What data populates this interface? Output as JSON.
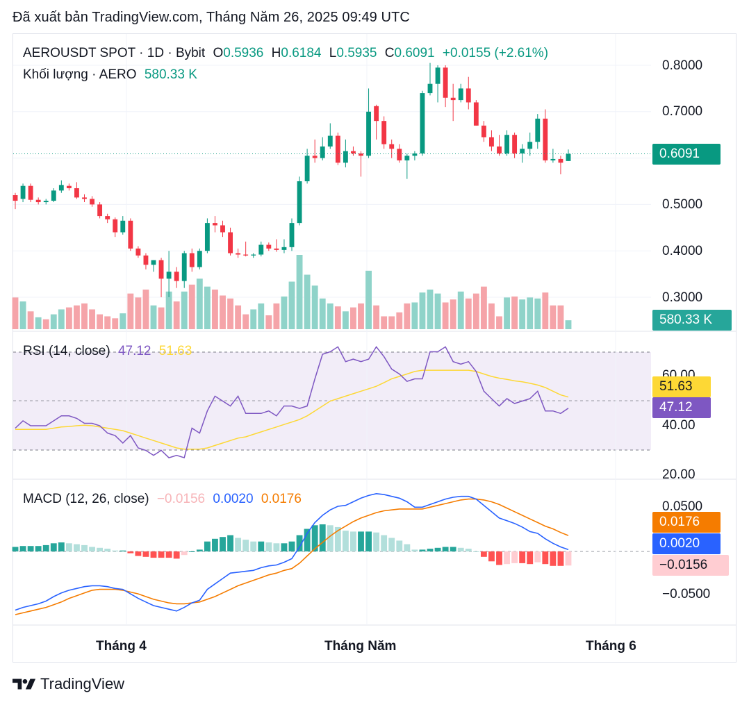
{
  "header": {
    "published": "Đã xuất bản TradingView.com, Tháng Năm 26, 2025 09:49 UTC"
  },
  "legend": {
    "symbol": "AEROUSDT SPOT · 1D · Bybit",
    "o_label": "O",
    "o": "0.5936",
    "h_label": "H",
    "h": "0.6184",
    "l_label": "L",
    "l": "0.5935",
    "c_label": "C",
    "c": "0.6091",
    "change": "+0.0155 (+2.61%)",
    "volume_label": "Khối lượng · AERO",
    "volume_value": "580.33 K"
  },
  "rsi_legend": {
    "label": "RSI (14, close)",
    "rsi": "47.12",
    "ma": "51.63"
  },
  "macd_legend": {
    "label": "MACD (12, 26, close)",
    "hist": "−0.0156",
    "macd": "0.0020",
    "signal": "0.0176"
  },
  "price_axis": [
    "0.8000",
    "0.7000",
    "0.5000",
    "0.4000",
    "0.3000"
  ],
  "rsi_axis": [
    "60.00",
    "40.00",
    "20.00"
  ],
  "macd_axis": [
    "0.0500",
    "−0.0500"
  ],
  "tags": {
    "price": "0.6091",
    "volume": "580.33 K",
    "rsi_ma": "51.63",
    "rsi": "47.12",
    "signal": "0.0176",
    "macd": "0.0020",
    "hist": "−0.0156"
  },
  "x_labels": [
    "Tháng 4",
    "Tháng Năm",
    "Tháng 6"
  ],
  "footer": {
    "brand": "TradingView"
  },
  "colors": {
    "up": "#089981",
    "down": "#f23645",
    "vol_up": "#8fd3c9",
    "vol_down": "#f5a4a9",
    "rsi": "#7e57c2",
    "rsi_ma": "#fdd835",
    "macd": "#2962ff",
    "signal": "#f57c00"
  },
  "chart_data": [
    {
      "type": "candlestick",
      "title": "AEROUSDT SPOT · 1D · Bybit",
      "ylim": [
        0.23,
        0.86
      ],
      "yticks": [
        0.3,
        0.4,
        0.5,
        0.7,
        0.8
      ],
      "last_close": 0.6091,
      "candles": [
        {
          "o": 0.52,
          "h": 0.525,
          "l": 0.49,
          "c": 0.508
        },
        {
          "o": 0.512,
          "h": 0.545,
          "l": 0.505,
          "c": 0.54
        },
        {
          "o": 0.54,
          "h": 0.545,
          "l": 0.505,
          "c": 0.51
        },
        {
          "o": 0.51,
          "h": 0.515,
          "l": 0.5,
          "c": 0.505
        },
        {
          "o": 0.505,
          "h": 0.512,
          "l": 0.5,
          "c": 0.508
        },
        {
          "o": 0.508,
          "h": 0.535,
          "l": 0.505,
          "c": 0.53
        },
        {
          "o": 0.53,
          "h": 0.552,
          "l": 0.525,
          "c": 0.542
        },
        {
          "o": 0.54,
          "h": 0.545,
          "l": 0.53,
          "c": 0.535
        },
        {
          "o": 0.535,
          "h": 0.548,
          "l": 0.512,
          "c": 0.515
        },
        {
          "o": 0.515,
          "h": 0.522,
          "l": 0.505,
          "c": 0.512
        },
        {
          "o": 0.512,
          "h": 0.518,
          "l": 0.495,
          "c": 0.5
        },
        {
          "o": 0.5,
          "h": 0.505,
          "l": 0.47,
          "c": 0.475
        },
        {
          "o": 0.475,
          "h": 0.48,
          "l": 0.46,
          "c": 0.468
        },
        {
          "o": 0.468,
          "h": 0.472,
          "l": 0.43,
          "c": 0.44
        },
        {
          "o": 0.44,
          "h": 0.475,
          "l": 0.435,
          "c": 0.465
        },
        {
          "o": 0.465,
          "h": 0.47,
          "l": 0.4,
          "c": 0.405
        },
        {
          "o": 0.405,
          "h": 0.41,
          "l": 0.385,
          "c": 0.39
        },
        {
          "o": 0.39,
          "h": 0.395,
          "l": 0.36,
          "c": 0.37
        },
        {
          "o": 0.37,
          "h": 0.38,
          "l": 0.355,
          "c": 0.38
        },
        {
          "o": 0.38,
          "h": 0.385,
          "l": 0.3,
          "c": 0.34
        },
        {
          "o": 0.34,
          "h": 0.4,
          "l": 0.3,
          "c": 0.355
        },
        {
          "o": 0.355,
          "h": 0.365,
          "l": 0.32,
          "c": 0.335
        },
        {
          "o": 0.335,
          "h": 0.4,
          "l": 0.32,
          "c": 0.395
        },
        {
          "o": 0.395,
          "h": 0.405,
          "l": 0.355,
          "c": 0.365
        },
        {
          "o": 0.365,
          "h": 0.405,
          "l": 0.36,
          "c": 0.4
        },
        {
          "o": 0.4,
          "h": 0.47,
          "l": 0.395,
          "c": 0.46
        },
        {
          "o": 0.46,
          "h": 0.475,
          "l": 0.44,
          "c": 0.455
        },
        {
          "o": 0.455,
          "h": 0.465,
          "l": 0.43,
          "c": 0.44
        },
        {
          "o": 0.44,
          "h": 0.45,
          "l": 0.39,
          "c": 0.395
        },
        {
          "o": 0.395,
          "h": 0.405,
          "l": 0.385,
          "c": 0.392
        },
        {
          "o": 0.392,
          "h": 0.42,
          "l": 0.388,
          "c": 0.39
        },
        {
          "o": 0.39,
          "h": 0.395,
          "l": 0.385,
          "c": 0.392
        },
        {
          "o": 0.392,
          "h": 0.42,
          "l": 0.388,
          "c": 0.413
        },
        {
          "o": 0.413,
          "h": 0.418,
          "l": 0.4,
          "c": 0.405
        },
        {
          "o": 0.405,
          "h": 0.425,
          "l": 0.398,
          "c": 0.402
        },
        {
          "o": 0.402,
          "h": 0.425,
          "l": 0.395,
          "c": 0.408
        },
        {
          "o": 0.408,
          "h": 0.47,
          "l": 0.4,
          "c": 0.46
        },
        {
          "o": 0.46,
          "h": 0.56,
          "l": 0.455,
          "c": 0.55
        },
        {
          "o": 0.55,
          "h": 0.62,
          "l": 0.545,
          "c": 0.605
        },
        {
          "o": 0.605,
          "h": 0.64,
          "l": 0.59,
          "c": 0.6
        },
        {
          "o": 0.6,
          "h": 0.645,
          "l": 0.595,
          "c": 0.625
        },
        {
          "o": 0.625,
          "h": 0.675,
          "l": 0.62,
          "c": 0.648
        },
        {
          "o": 0.648,
          "h": 0.655,
          "l": 0.585,
          "c": 0.59
        },
        {
          "o": 0.59,
          "h": 0.64,
          "l": 0.58,
          "c": 0.615
        },
        {
          "o": 0.615,
          "h": 0.625,
          "l": 0.605,
          "c": 0.61
        },
        {
          "o": 0.61,
          "h": 0.615,
          "l": 0.56,
          "c": 0.605
        },
        {
          "o": 0.605,
          "h": 0.75,
          "l": 0.6,
          "c": 0.7
        },
        {
          "o": 0.712,
          "h": 0.715,
          "l": 0.64,
          "c": 0.68
        },
        {
          "o": 0.68,
          "h": 0.69,
          "l": 0.62,
          "c": 0.63
        },
        {
          "o": 0.63,
          "h": 0.64,
          "l": 0.6,
          "c": 0.62
        },
        {
          "o": 0.62,
          "h": 0.63,
          "l": 0.59,
          "c": 0.595
        },
        {
          "o": 0.595,
          "h": 0.61,
          "l": 0.555,
          "c": 0.605
        },
        {
          "o": 0.605,
          "h": 0.615,
          "l": 0.595,
          "c": 0.61
        },
        {
          "o": 0.61,
          "h": 0.745,
          "l": 0.605,
          "c": 0.74
        },
        {
          "o": 0.74,
          "h": 0.805,
          "l": 0.735,
          "c": 0.76
        },
        {
          "o": 0.76,
          "h": 0.8,
          "l": 0.72,
          "c": 0.795
        },
        {
          "o": 0.795,
          "h": 0.8,
          "l": 0.71,
          "c": 0.73
        },
        {
          "o": 0.73,
          "h": 0.76,
          "l": 0.68,
          "c": 0.725
        },
        {
          "o": 0.725,
          "h": 0.76,
          "l": 0.72,
          "c": 0.75
        },
        {
          "o": 0.75,
          "h": 0.775,
          "l": 0.705,
          "c": 0.72
        },
        {
          "o": 0.72,
          "h": 0.725,
          "l": 0.67,
          "c": 0.67
        },
        {
          "o": 0.67,
          "h": 0.68,
          "l": 0.635,
          "c": 0.645
        },
        {
          "o": 0.645,
          "h": 0.66,
          "l": 0.615,
          "c": 0.625
        },
        {
          "o": 0.625,
          "h": 0.65,
          "l": 0.605,
          "c": 0.61
        },
        {
          "o": 0.61,
          "h": 0.66,
          "l": 0.605,
          "c": 0.65
        },
        {
          "o": 0.65,
          "h": 0.655,
          "l": 0.6,
          "c": 0.61
        },
        {
          "o": 0.61,
          "h": 0.63,
          "l": 0.59,
          "c": 0.62
        },
        {
          "o": 0.62,
          "h": 0.655,
          "l": 0.605,
          "c": 0.635
        },
        {
          "o": 0.635,
          "h": 0.695,
          "l": 0.62,
          "c": 0.685
        },
        {
          "o": 0.685,
          "h": 0.705,
          "l": 0.59,
          "c": 0.595
        },
        {
          "o": 0.595,
          "h": 0.62,
          "l": 0.59,
          "c": 0.598
        },
        {
          "o": 0.598,
          "h": 0.605,
          "l": 0.565,
          "c": 0.59
        },
        {
          "o": 0.5936,
          "h": 0.6184,
          "l": 0.5935,
          "c": 0.6091
        }
      ]
    },
    {
      "type": "bar",
      "title": "Khối lượng · AERO",
      "last_value": "580.33 K",
      "values": [
        3.2,
        2.8,
        1.8,
        1.2,
        1.0,
        1.5,
        2.0,
        2.2,
        2.4,
        2.6,
        2.0,
        1.5,
        1.3,
        1.1,
        1.6,
        3.6,
        3.2,
        4.0,
        2.4,
        2.2,
        3.8,
        2.8,
        3.8,
        4.5,
        5.1,
        4.3,
        4.0,
        3.4,
        3.1,
        2.4,
        1.5,
        2.0,
        2.6,
        1.4,
        2.6,
        3.3,
        4.8,
        7.5,
        5.5,
        4.4,
        3.1,
        2.6,
        2.3,
        1.8,
        2.2,
        2.6,
        5.9,
        2.4,
        1.3,
        1.3,
        1.7,
        2.6,
        2.7,
        3.7,
        4.0,
        3.6,
        2.7,
        3.0,
        3.8,
        3.1,
        3.6,
        4.3,
        2.6,
        1.3,
        3.2,
        3.3,
        3.0,
        3.2,
        3.1,
        3.7,
        2.4,
        2.4,
        0.9
      ],
      "up": [
        false,
        true,
        false,
        true,
        false,
        true,
        true,
        false,
        false,
        false,
        false,
        false,
        false,
        false,
        true,
        false,
        false,
        false,
        true,
        false,
        true,
        false,
        true,
        false,
        true,
        true,
        false,
        false,
        false,
        false,
        false,
        true,
        true,
        false,
        false,
        true,
        true,
        true,
        true,
        true,
        true,
        true,
        false,
        true,
        false,
        false,
        true,
        false,
        false,
        false,
        false,
        false,
        true,
        true,
        true,
        true,
        false,
        false,
        true,
        false,
        false,
        false,
        false,
        false,
        true,
        false,
        true,
        true,
        true,
        false,
        false,
        false,
        true
      ]
    },
    {
      "type": "line",
      "title": "RSI (14, close)",
      "ylim": [
        15,
        75
      ],
      "bands": [
        30,
        50,
        70
      ],
      "series": [
        {
          "name": "RSI",
          "values": [
            39,
            42,
            40,
            40,
            40,
            42,
            44,
            44,
            43,
            41,
            41,
            40,
            37,
            36,
            33,
            36,
            31,
            30,
            28,
            30,
            27,
            28,
            27,
            39,
            37,
            46,
            52,
            50,
            48,
            52,
            45,
            45,
            45,
            46,
            44,
            48,
            48,
            47,
            48,
            59,
            69,
            70,
            72,
            66,
            67,
            66,
            67,
            72,
            68,
            63,
            61,
            58,
            59,
            59,
            70,
            70,
            72,
            66,
            65,
            66,
            62,
            54,
            51,
            48,
            51,
            49,
            50,
            51,
            54,
            46,
            46,
            45,
            47.12
          ]
        },
        {
          "name": "MA",
          "values": [
            38.5,
            38.5,
            38.5,
            38.5,
            38.5,
            39,
            39.5,
            39.7,
            40,
            40.2,
            40,
            39.5,
            39,
            38.5,
            38,
            37,
            36,
            35,
            34,
            33,
            32,
            31,
            30.5,
            30.5,
            30.5,
            31,
            32,
            33,
            34,
            35,
            35.5,
            36.5,
            37.5,
            38.5,
            39.5,
            40.5,
            41.5,
            42.5,
            44,
            46,
            48,
            50,
            51,
            52,
            53,
            54,
            55,
            56,
            57.5,
            59,
            60,
            61,
            62,
            62.5,
            62.5,
            62.5,
            62.5,
            62.5,
            62.5,
            62.5,
            62,
            61,
            60,
            59.3,
            58.8,
            58.2,
            57.8,
            57.2,
            56.5,
            55.5,
            54,
            52.5,
            51.63
          ]
        }
      ]
    },
    {
      "type": "line",
      "title": "MACD (12, 26, close)",
      "ylim": [
        -0.083,
        0.068
      ],
      "series": [
        {
          "name": "MACD",
          "values": [
            -0.065,
            -0.062,
            -0.06,
            -0.058,
            -0.055,
            -0.05,
            -0.046,
            -0.043,
            -0.041,
            -0.039,
            -0.038,
            -0.038,
            -0.039,
            -0.041,
            -0.042,
            -0.047,
            -0.052,
            -0.056,
            -0.06,
            -0.062,
            -0.064,
            -0.066,
            -0.062,
            -0.057,
            -0.054,
            -0.042,
            -0.036,
            -0.03,
            -0.024,
            -0.023,
            -0.022,
            -0.021,
            -0.018,
            -0.016,
            -0.015,
            -0.012,
            -0.008,
            0.005,
            0.02,
            0.032,
            0.04,
            0.046,
            0.05,
            0.051,
            0.055,
            0.059,
            0.062,
            0.064,
            0.063,
            0.061,
            0.059,
            0.055,
            0.049,
            0.049,
            0.052,
            0.055,
            0.058,
            0.06,
            0.061,
            0.061,
            0.058,
            0.051,
            0.044,
            0.037,
            0.034,
            0.031,
            0.027,
            0.022,
            0.02,
            0.014,
            0.009,
            0.005,
            0.002
          ]
        },
        {
          "name": "Signal",
          "values": [
            -0.07,
            -0.068,
            -0.066,
            -0.064,
            -0.062,
            -0.059,
            -0.056,
            -0.052,
            -0.049,
            -0.046,
            -0.043,
            -0.042,
            -0.042,
            -0.042,
            -0.043,
            -0.045,
            -0.047,
            -0.05,
            -0.053,
            -0.055,
            -0.057,
            -0.058,
            -0.058,
            -0.057,
            -0.056,
            -0.053,
            -0.05,
            -0.046,
            -0.042,
            -0.038,
            -0.035,
            -0.032,
            -0.029,
            -0.026,
            -0.024,
            -0.021,
            -0.019,
            -0.013,
            -0.005,
            0.003,
            0.01,
            0.017,
            0.023,
            0.028,
            0.033,
            0.037,
            0.04,
            0.043,
            0.045,
            0.046,
            0.047,
            0.047,
            0.047,
            0.047,
            0.049,
            0.051,
            0.053,
            0.055,
            0.057,
            0.058,
            0.058,
            0.057,
            0.055,
            0.052,
            0.048,
            0.044,
            0.04,
            0.036,
            0.032,
            0.028,
            0.025,
            0.021,
            0.0176
          ]
        },
        {
          "name": "Histogram",
          "values": [
            0.005,
            0.006,
            0.006,
            0.006,
            0.007,
            0.009,
            0.01,
            0.009,
            0.008,
            0.007,
            0.005,
            0.004,
            0.003,
            0.001,
            0.001,
            -0.002,
            -0.005,
            -0.006,
            -0.007,
            -0.007,
            -0.007,
            -0.008,
            -0.004,
            0.0,
            0.002,
            0.011,
            0.014,
            0.016,
            0.018,
            0.015,
            0.013,
            0.011,
            0.011,
            0.01,
            0.009,
            0.009,
            0.011,
            0.018,
            0.025,
            0.029,
            0.03,
            0.029,
            0.027,
            0.023,
            0.022,
            0.022,
            0.022,
            0.021,
            0.018,
            0.015,
            0.012,
            0.008,
            0.002,
            0.002,
            0.003,
            0.004,
            0.005,
            0.005,
            0.004,
            0.003,
            0.0,
            -0.006,
            -0.011,
            -0.015,
            -0.014,
            -0.013,
            -0.013,
            -0.014,
            -0.012,
            -0.014,
            -0.016,
            -0.016,
            -0.0156
          ]
        }
      ]
    }
  ]
}
